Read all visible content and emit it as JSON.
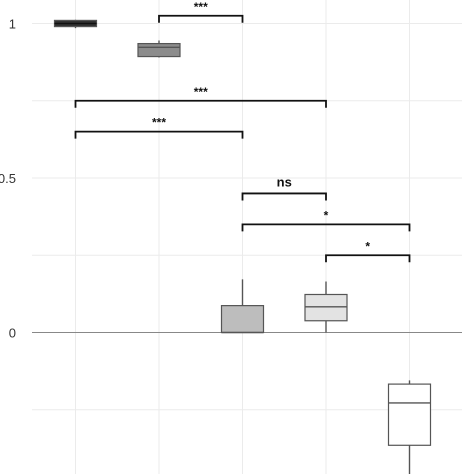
{
  "chart_data": {
    "type": "box",
    "title": "",
    "xlabel": "",
    "ylabel": "",
    "ylim": [
      -0.47,
      1.05
    ],
    "y_ticks": [
      {
        "value": 1,
        "label": "1"
      },
      {
        "value": 0.5,
        "label": "0.5"
      },
      {
        "value": 0,
        "label": "0"
      }
    ],
    "grid": true,
    "zero_line": true,
    "groups": [
      {
        "position": 1,
        "whisker_low": 0.985,
        "q1": 0.99,
        "median": 1.0,
        "q3": 1.01,
        "whisker_high": 1.012,
        "fill": "#333333"
      },
      {
        "position": 2,
        "whisker_low": 0.89,
        "q1": 0.893,
        "median": 0.923,
        "q3": 0.935,
        "whisker_high": 0.945,
        "fill": "#8c8c8c"
      },
      {
        "position": 3,
        "whisker_low": 0.0,
        "q1": 0.0,
        "median": 0.0,
        "q3": 0.087,
        "whisker_high": 0.172,
        "fill": "#bdbdbd"
      },
      {
        "position": 4,
        "whisker_low": 0.0,
        "q1": 0.038,
        "median": 0.083,
        "q3": 0.123,
        "whisker_high": 0.165,
        "fill": "#e3e3e3"
      },
      {
        "position": 5,
        "whisker_low": -0.52,
        "q1": -0.365,
        "median": -0.228,
        "q3": -0.167,
        "whisker_high": -0.155,
        "fill": "#ffffff"
      }
    ],
    "comparisons": [
      {
        "from": 2,
        "to": 3,
        "y": 1.025,
        "label": "***"
      },
      {
        "from": 1,
        "to": 4,
        "y": 0.75,
        "label": "***"
      },
      {
        "from": 1,
        "to": 3,
        "y": 0.65,
        "label": "***"
      },
      {
        "from": 3,
        "to": 4,
        "y": 0.45,
        "label": "ns"
      },
      {
        "from": 3,
        "to": 5,
        "y": 0.35,
        "label": "*"
      },
      {
        "from": 4,
        "to": 5,
        "y": 0.25,
        "label": "*"
      }
    ],
    "colors": {
      "grid": "#ebebeb",
      "zero_line": "#888888",
      "box_stroke": "#555555",
      "bracket": "#111111",
      "tick_label": "#333333"
    }
  }
}
